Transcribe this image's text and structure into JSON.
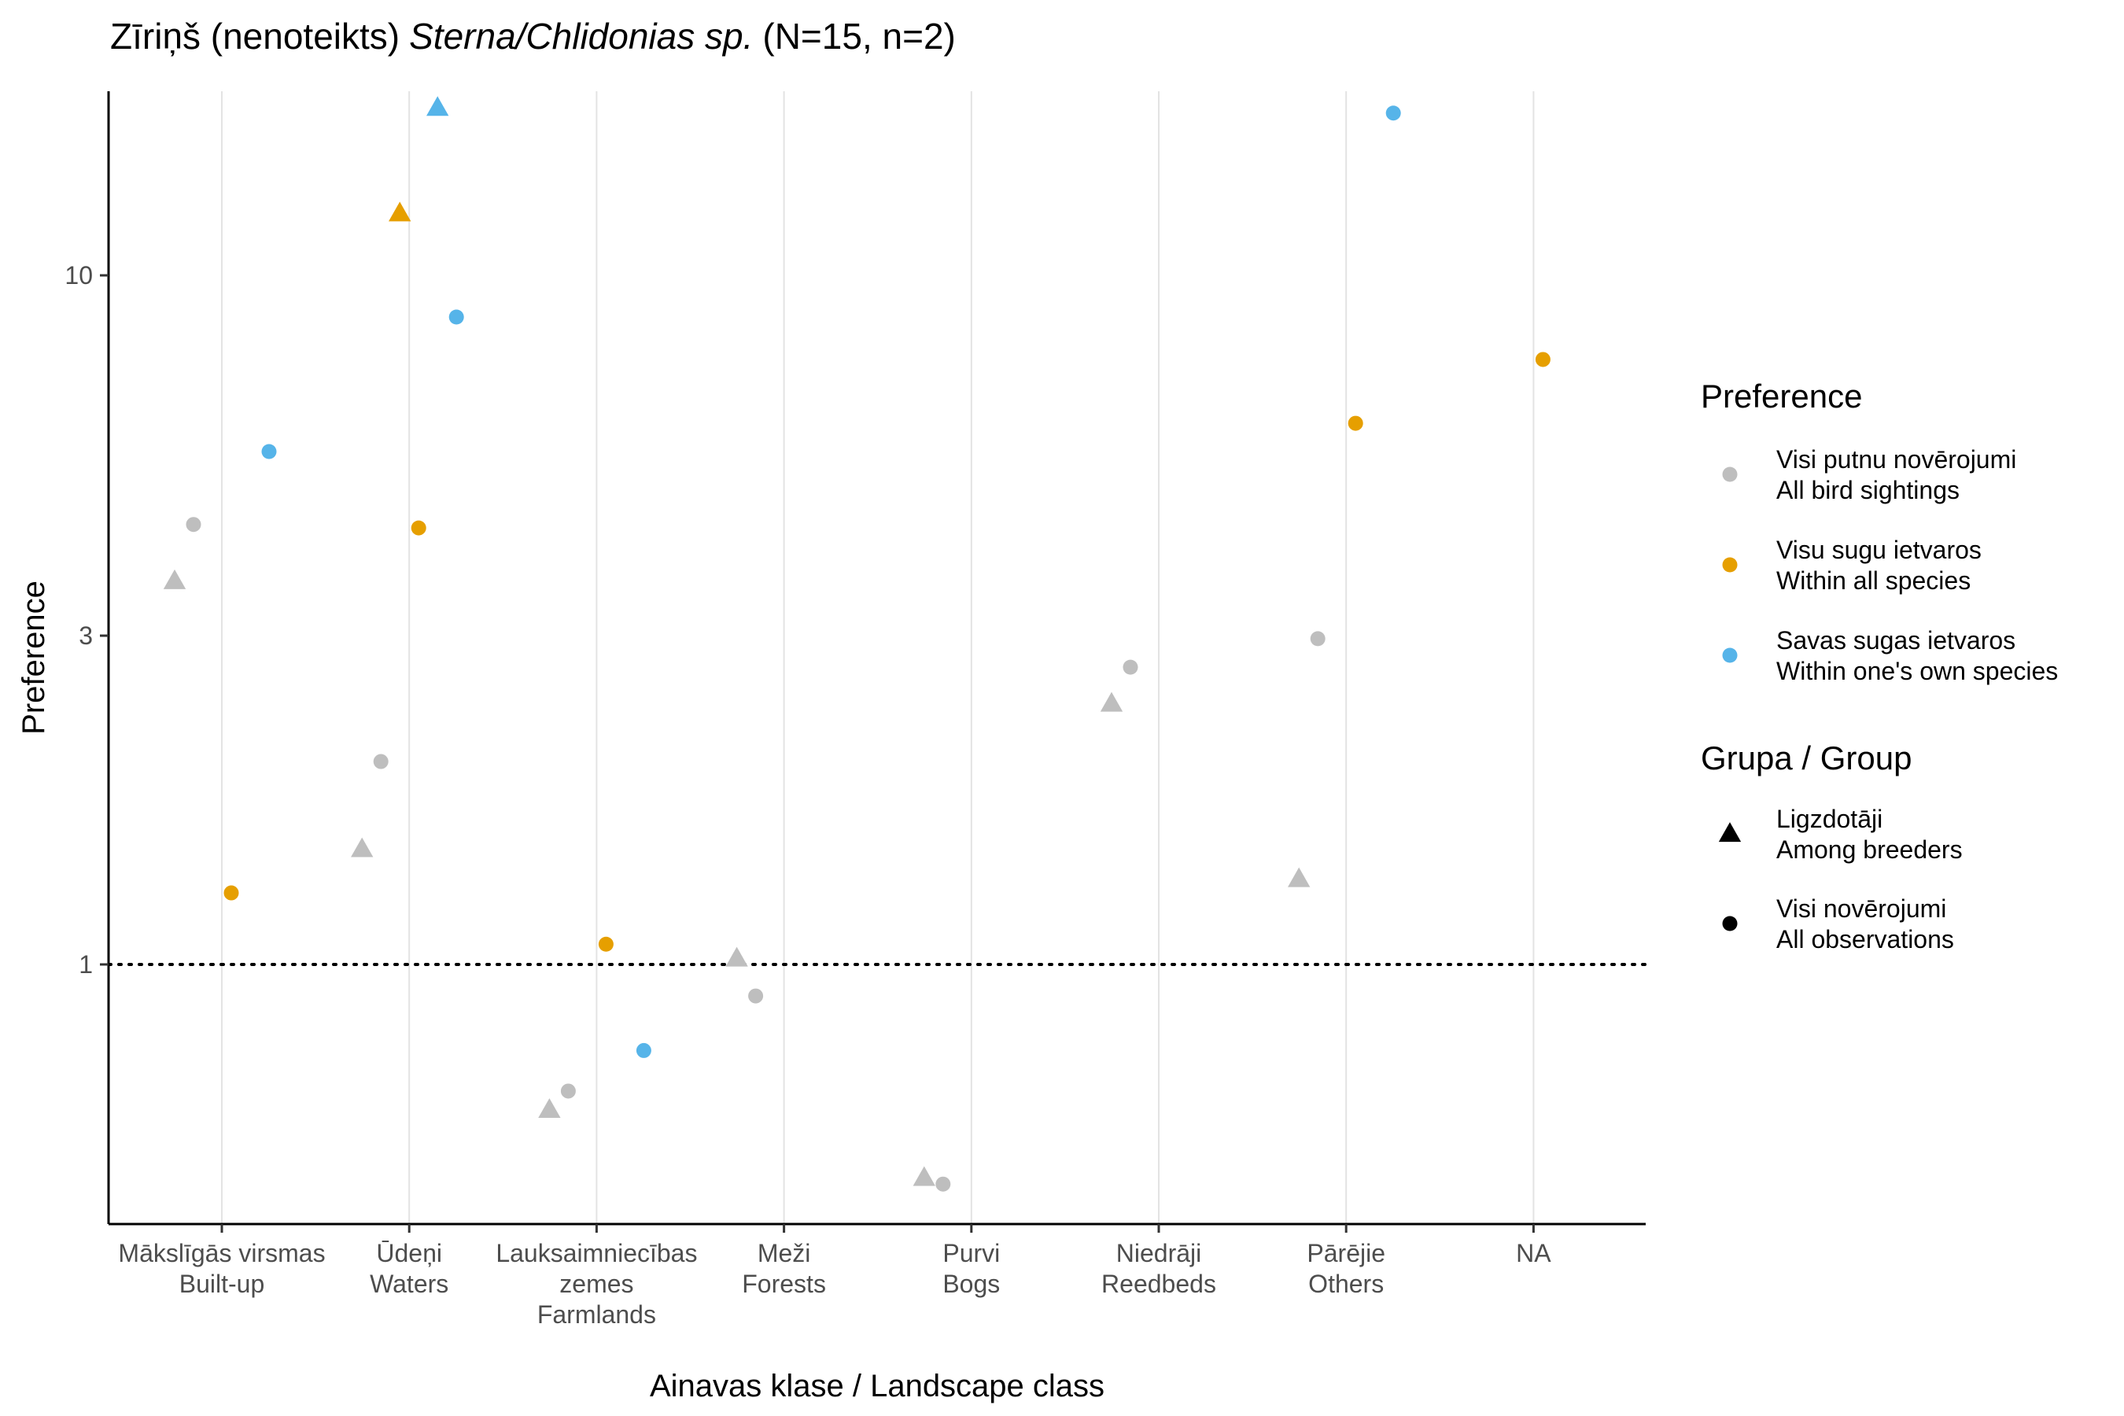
{
  "chart_data": {
    "type": "scatter",
    "title_prefix": "Zīriņš (nenoteikts)",
    "title_species": "Sterna/Chlidonias sp.",
    "title_suffix": "(N=15, n=2)",
    "xlabel": "Ainavas klase / Landscape class",
    "ylabel": "Preference",
    "y_scale": "log",
    "ylim": [
      0.42,
      18.5
    ],
    "y_ticks": [
      {
        "value": 1,
        "label": "1"
      },
      {
        "value": 3,
        "label": "3"
      },
      {
        "value": 10,
        "label": "10"
      }
    ],
    "reference_line": 1,
    "grid": "vertical major",
    "categories": [
      {
        "key": "built-up",
        "lines": [
          "Mākslīgās virsmas",
          "Built-up"
        ]
      },
      {
        "key": "waters",
        "lines": [
          "Ūdeņi",
          "Waters"
        ]
      },
      {
        "key": "farmlands",
        "lines": [
          "Lauksaimniecības",
          "zemes",
          "Farmlands"
        ]
      },
      {
        "key": "forests",
        "lines": [
          "Meži",
          "Forests"
        ]
      },
      {
        "key": "bogs",
        "lines": [
          "Purvi",
          "Bogs"
        ]
      },
      {
        "key": "reedbeds",
        "lines": [
          "Niedrāji",
          "Reedbeds"
        ]
      },
      {
        "key": "others",
        "lines": [
          "Pārējie",
          "Others"
        ]
      },
      {
        "key": "na",
        "lines": [
          "NA"
        ]
      }
    ],
    "colors": {
      "all_sightings": "#bebebe",
      "within_all_species": "#e69f00",
      "within_own_species": "#56b4e9"
    },
    "legend": {
      "position": "right",
      "preference_title": "Preference",
      "preference_items": [
        {
          "key": "all_sightings",
          "lines": [
            "Visi putnu novērojumi",
            "All bird sightings"
          ]
        },
        {
          "key": "within_all_species",
          "lines": [
            "Visu sugu ietvaros",
            "Within all species"
          ]
        },
        {
          "key": "within_own_species",
          "lines": [
            "Savas sugas ietvaros",
            "Within one's own species"
          ]
        }
      ],
      "group_title": "Grupa / Group",
      "group_items": [
        {
          "key": "breeders",
          "shape": "triangle",
          "lines": [
            "Ligzdotāji",
            "Among breeders"
          ]
        },
        {
          "key": "all_observations",
          "shape": "circle",
          "lines": [
            "Visi novērojumi",
            "All observations"
          ]
        }
      ]
    },
    "points": [
      {
        "category": 0,
        "offset": -0.3,
        "preference": "all_sightings",
        "group": "breeders",
        "y": 3.6
      },
      {
        "category": 0,
        "offset": -0.18,
        "preference": "all_sightings",
        "group": "all_observations",
        "y": 4.35
      },
      {
        "category": 0,
        "offset": 0.06,
        "preference": "within_all_species",
        "group": "all_observations",
        "y": 1.27
      },
      {
        "category": 0,
        "offset": 0.3,
        "preference": "within_own_species",
        "group": "all_observations",
        "y": 5.55
      },
      {
        "category": 1,
        "offset": -0.3,
        "preference": "all_sightings",
        "group": "breeders",
        "y": 1.47
      },
      {
        "category": 1,
        "offset": -0.18,
        "preference": "all_sightings",
        "group": "all_observations",
        "y": 1.97
      },
      {
        "category": 1,
        "offset": -0.06,
        "preference": "within_all_species",
        "group": "breeders",
        "y": 12.3
      },
      {
        "category": 1,
        "offset": 0.06,
        "preference": "within_all_species",
        "group": "all_observations",
        "y": 4.3
      },
      {
        "category": 1,
        "offset": 0.18,
        "preference": "within_own_species",
        "group": "breeders",
        "y": 17.5
      },
      {
        "category": 1,
        "offset": 0.3,
        "preference": "within_own_species",
        "group": "all_observations",
        "y": 8.7
      },
      {
        "category": 2,
        "offset": -0.3,
        "preference": "all_sightings",
        "group": "breeders",
        "y": 0.615
      },
      {
        "category": 2,
        "offset": -0.18,
        "preference": "all_sightings",
        "group": "all_observations",
        "y": 0.655
      },
      {
        "category": 2,
        "offset": 0.06,
        "preference": "within_all_species",
        "group": "all_observations",
        "y": 1.07
      },
      {
        "category": 2,
        "offset": 0.3,
        "preference": "within_own_species",
        "group": "all_observations",
        "y": 0.75
      },
      {
        "category": 3,
        "offset": -0.3,
        "preference": "all_sightings",
        "group": "breeders",
        "y": 1.02
      },
      {
        "category": 3,
        "offset": -0.18,
        "preference": "all_sightings",
        "group": "all_observations",
        "y": 0.9
      },
      {
        "category": 4,
        "offset": -0.3,
        "preference": "all_sightings",
        "group": "breeders",
        "y": 0.49
      },
      {
        "category": 4,
        "offset": -0.18,
        "preference": "all_sightings",
        "group": "all_observations",
        "y": 0.48
      },
      {
        "category": 5,
        "offset": -0.3,
        "preference": "all_sightings",
        "group": "breeders",
        "y": 2.39
      },
      {
        "category": 5,
        "offset": -0.18,
        "preference": "all_sightings",
        "group": "all_observations",
        "y": 2.7
      },
      {
        "category": 6,
        "offset": -0.3,
        "preference": "all_sightings",
        "group": "breeders",
        "y": 1.33
      },
      {
        "category": 6,
        "offset": -0.18,
        "preference": "all_sightings",
        "group": "all_observations",
        "y": 2.97
      },
      {
        "category": 6,
        "offset": 0.06,
        "preference": "within_all_species",
        "group": "all_observations",
        "y": 6.1
      },
      {
        "category": 6,
        "offset": 0.3,
        "preference": "within_own_species",
        "group": "all_observations",
        "y": 17.2
      },
      {
        "category": 7,
        "offset": 0.06,
        "preference": "within_all_species",
        "group": "all_observations",
        "y": 7.55
      }
    ]
  }
}
